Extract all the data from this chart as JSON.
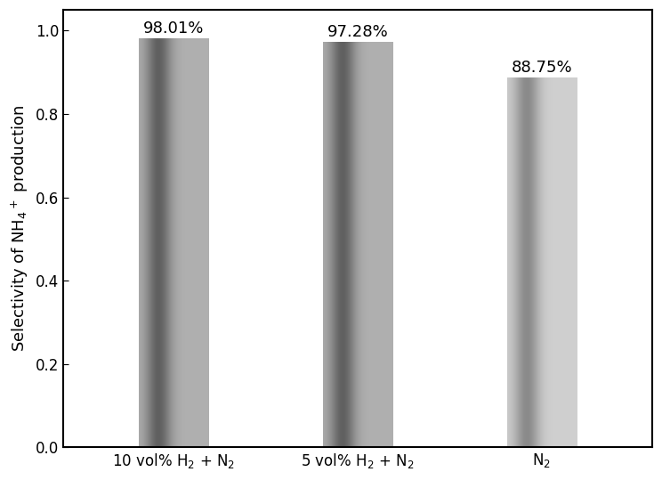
{
  "categories": [
    "10 vol% H$_2$ + N$_2$",
    "5 vol% H$_2$ + N$_2$",
    "N$_2$"
  ],
  "values": [
    0.9801,
    0.9728,
    0.8875
  ],
  "labels": [
    "98.01%",
    "97.28%",
    "88.75%"
  ],
  "bar_dark": [
    "#606060",
    "#606060",
    "#8a8a8a"
  ],
  "bar_light": [
    "#b0b0b0",
    "#b0b0b0",
    "#d0d0d0"
  ],
  "ylabel": "Selectivity of NH$_4$$^+$ production",
  "ylim": [
    0.0,
    1.05
  ],
  "yticks": [
    0.0,
    0.2,
    0.4,
    0.6,
    0.8,
    1.0
  ],
  "label_fontsize": 13,
  "tick_fontsize": 12,
  "annotation_fontsize": 13,
  "bar_width": 0.38,
  "background_color": "#ffffff",
  "figure_width": 7.44,
  "figure_height": 5.39,
  "dpi": 100
}
